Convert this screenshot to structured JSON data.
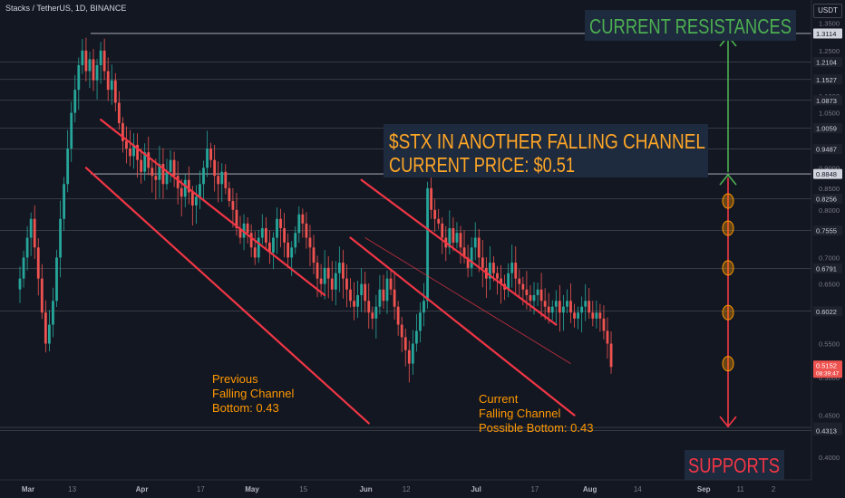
{
  "header": {
    "title": "Stacks / TetherUS, 1D, BINANCE"
  },
  "currency_button": "USDT",
  "colors": {
    "background": "#131722",
    "bull": "#26a69a",
    "bear": "#ef5350",
    "channel": "#f23645",
    "level_line": "#9598a1",
    "resistance_line": "#d1d4dc",
    "arrow_up": "#4caf50",
    "arrow_down": "#f23645",
    "bubble": "#ff9800",
    "title_box": "#1e2a3e",
    "title_text": "#ffa726",
    "resistance_text": "#4caf50",
    "support_text": "#f23645",
    "label_text": "#ff9800"
  },
  "chart_data": {
    "type": "candlestick",
    "y_axis": {
      "unit": "USDT",
      "range": [
        0.4,
        1.5
      ],
      "ticks": [
        1.35,
        1.25,
        1.15,
        1.1,
        1.05,
        0.95,
        0.9,
        0.85,
        0.8,
        0.75,
        0.7,
        0.65,
        0.6,
        0.55,
        0.5,
        0.45,
        0.4
      ],
      "tick_labels": [
        "1.3500",
        "1.2500",
        "1.1500",
        "1.1000",
        "1.0500",
        "0.9500",
        "0.9000",
        "0.8500",
        "0.8000",
        "0.7500",
        "0.7000",
        "0.6500",
        "0.6000",
        "0.5500",
        "0.5000",
        "0.4500",
        "0.4000"
      ]
    },
    "x_axis": {
      "ticks": [
        {
          "label": "Mar",
          "day": 0
        },
        {
          "label": "13",
          "day": 12
        },
        {
          "label": "Apr",
          "day": 31
        },
        {
          "label": "17",
          "day": 47
        },
        {
          "label": "May",
          "day": 61
        },
        {
          "label": "15",
          "day": 75
        },
        {
          "label": "Jun",
          "day": 92
        },
        {
          "label": "12",
          "day": 103
        },
        {
          "label": "Jul",
          "day": 122
        },
        {
          "label": "17",
          "day": 138
        },
        {
          "label": "Aug",
          "day": 153
        },
        {
          "label": "14",
          "day": 166
        },
        {
          "label": "Sep",
          "day": 184
        },
        {
          "label": "11",
          "day": 194
        },
        {
          "label": "2",
          "day": 203
        }
      ]
    },
    "levels": [
      {
        "value": 1.3114,
        "label": "1.3114",
        "type": "resistance"
      },
      {
        "value": 1.2104,
        "label": "1.2104",
        "type": "level"
      },
      {
        "value": 1.1527,
        "label": "1.1527",
        "type": "level"
      },
      {
        "value": 1.0873,
        "label": "1.0873",
        "type": "level"
      },
      {
        "value": 1.0059,
        "label": "1.0059",
        "type": "level"
      },
      {
        "value": 0.9487,
        "label": "0.9487",
        "type": "level"
      },
      {
        "value": 0.8848,
        "label": "0.8848",
        "type": "resistance"
      },
      {
        "value": 0.8256,
        "label": "0.8256",
        "type": "level"
      },
      {
        "value": 0.7555,
        "label": "0.7555",
        "type": "level"
      },
      {
        "value": 0.6791,
        "label": "0.6791",
        "type": "level"
      },
      {
        "value": 0.6022,
        "label": "0.6022",
        "type": "level"
      },
      {
        "value": 0.4349,
        "label": "0.4349",
        "type": "support"
      },
      {
        "value": 0.4313,
        "label": "0.4313",
        "type": "support"
      }
    ],
    "last_price": {
      "value": 0.5152,
      "label": "0.5152",
      "countdown": "08:39:47"
    },
    "closes": [
      0.66,
      0.7,
      0.74,
      0.78,
      0.72,
      0.66,
      0.6,
      0.55,
      0.58,
      0.62,
      0.7,
      0.78,
      0.86,
      0.95,
      1.05,
      1.12,
      1.2,
      1.25,
      1.18,
      1.22,
      1.15,
      1.2,
      1.25,
      1.18,
      1.12,
      1.15,
      1.08,
      1.02,
      0.97,
      0.95,
      0.93,
      0.96,
      0.92,
      0.89,
      0.94,
      0.9,
      0.88,
      0.87,
      0.91,
      0.86,
      0.89,
      0.92,
      0.88,
      0.85,
      0.83,
      0.87,
      0.84,
      0.81,
      0.83,
      0.86,
      0.9,
      0.95,
      0.92,
      0.88,
      0.86,
      0.89,
      0.85,
      0.82,
      0.8,
      0.76,
      0.74,
      0.77,
      0.75,
      0.72,
      0.7,
      0.74,
      0.76,
      0.73,
      0.71,
      0.74,
      0.78,
      0.76,
      0.73,
      0.7,
      0.72,
      0.75,
      0.79,
      0.77,
      0.74,
      0.72,
      0.69,
      0.66,
      0.65,
      0.68,
      0.66,
      0.64,
      0.67,
      0.69,
      0.66,
      0.64,
      0.62,
      0.61,
      0.63,
      0.65,
      0.62,
      0.6,
      0.59,
      0.61,
      0.64,
      0.62,
      0.66,
      0.64,
      0.61,
      0.58,
      0.56,
      0.54,
      0.52,
      0.55,
      0.57,
      0.6,
      0.62,
      0.85,
      0.8,
      0.78,
      0.77,
      0.74,
      0.72,
      0.76,
      0.73,
      0.75,
      0.72,
      0.7,
      0.68,
      0.72,
      0.74,
      0.7,
      0.68,
      0.66,
      0.69,
      0.67,
      0.66,
      0.65,
      0.64,
      0.67,
      0.69,
      0.66,
      0.65,
      0.64,
      0.63,
      0.62,
      0.63,
      0.64,
      0.62,
      0.61,
      0.6,
      0.61,
      0.62,
      0.6,
      0.61,
      0.62,
      0.6,
      0.59,
      0.6,
      0.61,
      0.62,
      0.6,
      0.59,
      0.6,
      0.59,
      0.57,
      0.55,
      0.5152
    ],
    "channels": [
      {
        "name": "previous",
        "upper": [
          [
            22,
            1.03
          ],
          [
            83,
            0.63
          ]
        ],
        "lower": [
          [
            18,
            0.9
          ],
          [
            95,
            0.44
          ]
        ]
      },
      {
        "name": "current",
        "upper": [
          [
            93,
            0.87
          ],
          [
            146,
            0.58
          ]
        ],
        "lower": [
          [
            90,
            0.74
          ],
          [
            151,
            0.45
          ]
        ]
      }
    ],
    "inner_line": [
      [
        94,
        0.74
      ],
      [
        150,
        0.52
      ]
    ],
    "bubbles": [
      0.82,
      0.76,
      0.68,
      0.6,
      0.52
    ],
    "annotations": {
      "title_line1": "$STX IN ANOTHER FALLING CHANNEL",
      "title_line2": "CURRENT PRICE: $0.51",
      "resistances": "CURRENT RESISTANCES",
      "supports": "SUPPORTS",
      "previous_line1": "Previous",
      "previous_line2": "Falling Channel",
      "previous_line3": "Bottom: 0.43",
      "current_line1": "Current",
      "current_line2": "Falling Channel",
      "current_line3": "Possible Bottom: 0.43"
    }
  }
}
